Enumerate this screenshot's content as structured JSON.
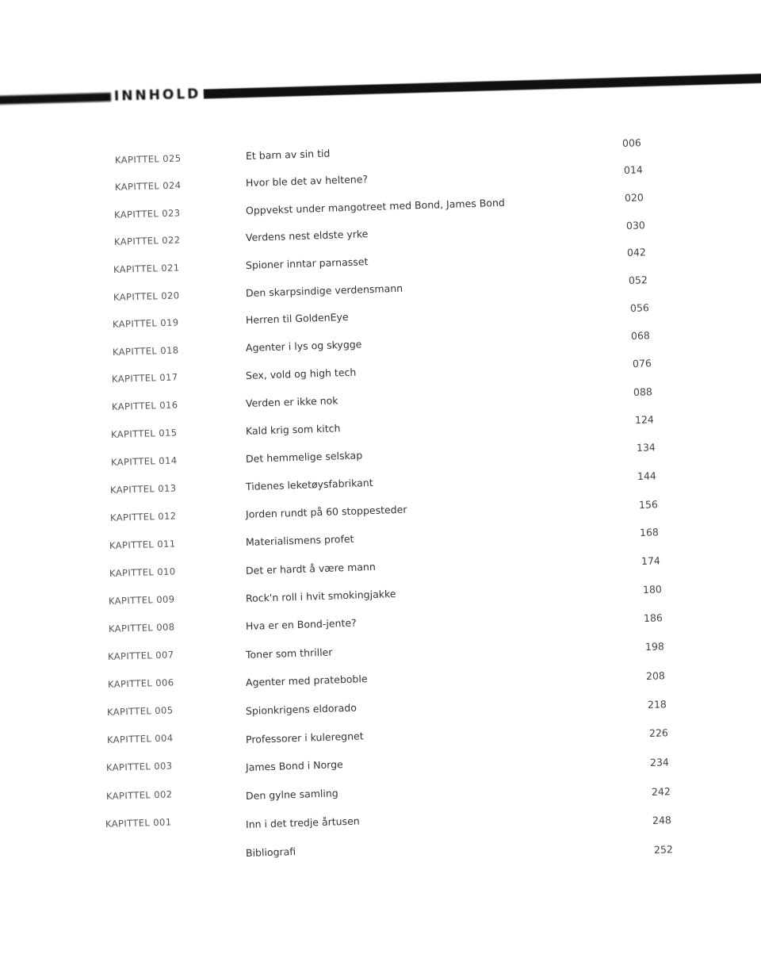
{
  "heading": "INNHOLD",
  "chapters": [
    {
      "label": "KAPITTEL 025",
      "title": "Et barn av sin tid",
      "page": "006"
    },
    {
      "label": "KAPITTEL 024",
      "title": "Hvor ble det av heltene?",
      "page": "014"
    },
    {
      "label": "KAPITTEL 023",
      "title": "Oppvekst under mangotreet med Bond, James Bond",
      "page": "020"
    },
    {
      "label": "KAPITTEL 022",
      "title": "Verdens nest eldste yrke",
      "page": "030"
    },
    {
      "label": "KAPITTEL 021",
      "title": "Spioner inntar parnasset",
      "page": "042"
    },
    {
      "label": "KAPITTEL 020",
      "title": "Den skarpsindige verdensmann",
      "page": "052"
    },
    {
      "label": "KAPITTEL 019",
      "title": "Herren til GoldenEye",
      "page": "056"
    },
    {
      "label": "KAPITTEL 018",
      "title": "Agenter i lys og skygge",
      "page": "068"
    },
    {
      "label": "KAPITTEL 017",
      "title": "Sex, vold og high tech",
      "page": "076"
    },
    {
      "label": "KAPITTEL 016",
      "title": "Verden er ikke nok",
      "page": "088"
    },
    {
      "label": "KAPITTEL 015",
      "title": "Kald krig som kitch",
      "page": "124"
    },
    {
      "label": "KAPITTEL 014",
      "title": "Det hemmelige selskap",
      "page": "134"
    },
    {
      "label": "KAPITTEL 013",
      "title": "Tidenes leketøysfabrikant",
      "page": "144"
    },
    {
      "label": "KAPITTEL 012",
      "title": "Jorden rundt på 60 stoppesteder",
      "page": "156"
    },
    {
      "label": "KAPITTEL 011",
      "title": "Materialismens profet",
      "page": "168"
    },
    {
      "label": "KAPITTEL 010",
      "title": "Det er hardt å være mann",
      "page": "174"
    },
    {
      "label": "KAPITTEL 009",
      "title": "Rock'n roll i hvit smokingjakke",
      "page": "180"
    },
    {
      "label": "KAPITTEL 008",
      "title": "Hva er en Bond-jente?",
      "page": "186"
    },
    {
      "label": "KAPITTEL 007",
      "title": "Toner som thriller",
      "page": "198"
    },
    {
      "label": "KAPITTEL 006",
      "title": "Agenter med prateboble",
      "page": "208"
    },
    {
      "label": "KAPITTEL 005",
      "title": "Spionkrigens eldorado",
      "page": "218"
    },
    {
      "label": "KAPITTEL 004",
      "title": "Professorer i kuleregnet",
      "page": "226"
    },
    {
      "label": "KAPITTEL 003",
      "title": "James Bond i Norge",
      "page": "234"
    },
    {
      "label": "KAPITTEL 002",
      "title": "Den gylne samling",
      "page": "242"
    },
    {
      "label": "KAPITTEL 001",
      "title": "Inn i det tredje årtusen",
      "page": "248"
    },
    {
      "label": "",
      "title": "Bibliografi",
      "page": "252"
    }
  ]
}
